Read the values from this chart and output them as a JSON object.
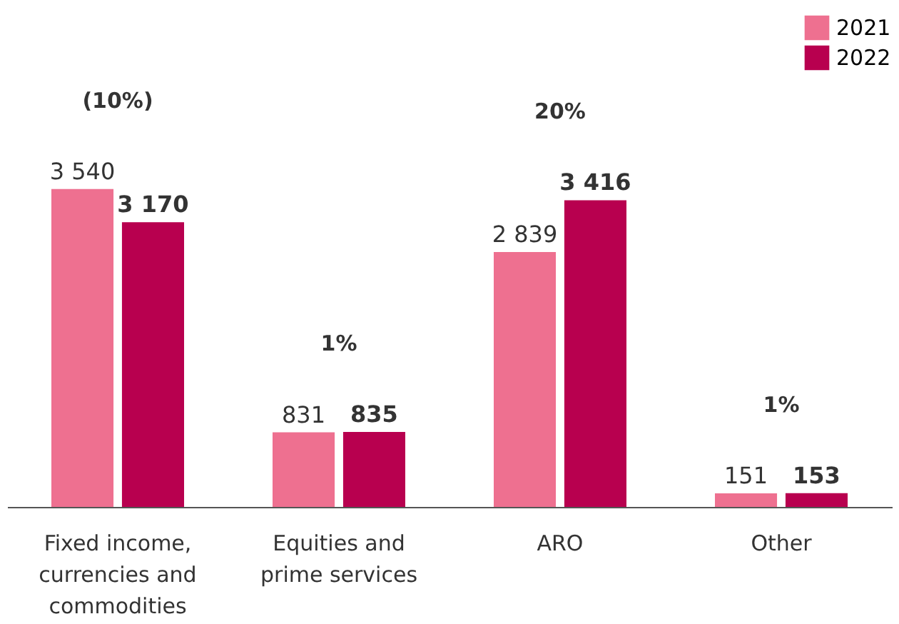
{
  "chart_data": {
    "type": "bar",
    "categories": [
      "Fixed income, currencies and commodities",
      "Equities and prime services",
      "ARO",
      "Other"
    ],
    "series": [
      {
        "name": "2021",
        "color": "#ee7090",
        "values": [
          3540,
          831,
          2839,
          151
        ],
        "value_labels": [
          "3 540",
          "831",
          "2 839",
          "151"
        ]
      },
      {
        "name": "2022",
        "color": "#b8004f",
        "values": [
          3170,
          835,
          3416,
          153
        ],
        "value_labels": [
          "3 170",
          "835",
          "3 416",
          "153"
        ]
      }
    ],
    "annotations": [
      "(10%)",
      "1%",
      "20%",
      "1%"
    ],
    "legend": "top right",
    "grid": false
  }
}
